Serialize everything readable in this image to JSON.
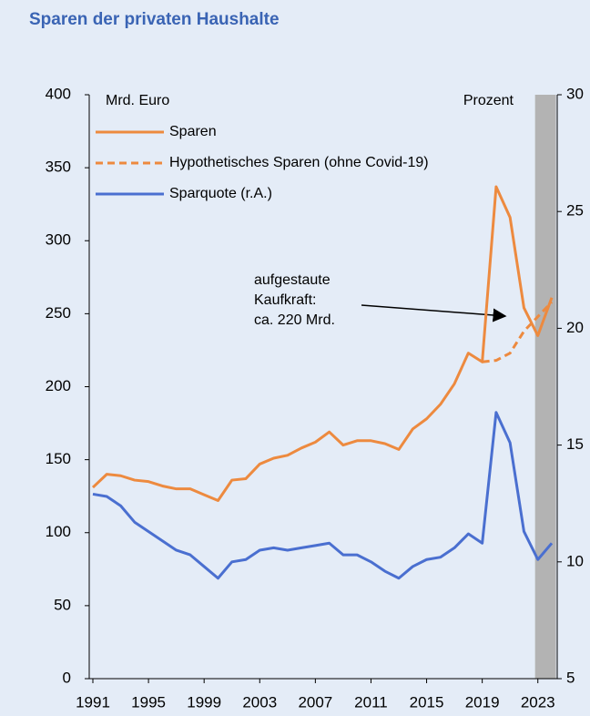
{
  "chart_data": {
    "type": "line",
    "title": "Sparen der privaten Haushalte",
    "y_label": "Mrd. Euro",
    "y2_label": "Prozent",
    "annotation": [
      "aufgestaute",
      "Kaufkraft:",
      "ca. 220 Mrd."
    ],
    "x": [
      1991,
      1992,
      1993,
      1994,
      1995,
      1996,
      1997,
      1998,
      1999,
      2000,
      2001,
      2002,
      2003,
      2004,
      2005,
      2006,
      2007,
      2008,
      2009,
      2010,
      2011,
      2012,
      2013,
      2014,
      2015,
      2016,
      2017,
      2018,
      2019,
      2020,
      2021,
      2022,
      2023,
      2024
    ],
    "series": [
      {
        "name": "Sparen",
        "color": "#ed8a3f",
        "dashed": false,
        "values": [
          131,
          140,
          139,
          136,
          135,
          132,
          130,
          130,
          126,
          122,
          136,
          137,
          147,
          151,
          153,
          158,
          162,
          169,
          160,
          163,
          163,
          161,
          157,
          171,
          178,
          188,
          202,
          223,
          217,
          337,
          316,
          254,
          235,
          261
        ]
      },
      {
        "name": "Hypothetisches Sparen (ohne Covid-19)",
        "color": "#ed8a3f",
        "dashed": true,
        "values": [
          null,
          null,
          null,
          null,
          null,
          null,
          null,
          null,
          null,
          null,
          null,
          null,
          null,
          null,
          null,
          null,
          null,
          null,
          null,
          null,
          null,
          null,
          null,
          null,
          null,
          null,
          null,
          null,
          217,
          218,
          223,
          238,
          248,
          258
        ]
      },
      {
        "name": "Sparquote (r.A.)",
        "color": "#4a6fd0",
        "dashed": false,
        "axis": "y2",
        "values": [
          12.9,
          12.8,
          12.4,
          11.7,
          11.3,
          10.9,
          10.5,
          10.3,
          9.8,
          9.3,
          10.0,
          10.1,
          10.5,
          10.6,
          10.5,
          10.6,
          10.7,
          10.8,
          10.3,
          10.3,
          10.0,
          9.6,
          9.3,
          9.8,
          10.1,
          10.2,
          10.6,
          11.2,
          10.8,
          16.4,
          15.1,
          11.3,
          10.1,
          10.8
        ]
      }
    ],
    "xlim": [
      1991,
      2024
    ],
    "xticks": [
      1991,
      1995,
      1999,
      2003,
      2007,
      2011,
      2015,
      2019,
      2023
    ],
    "ylim": [
      0,
      400
    ],
    "yticks": [
      0,
      50,
      100,
      150,
      200,
      250,
      300,
      350,
      400
    ],
    "y2lim": [
      5,
      30
    ],
    "y2ticks": [
      5,
      10,
      15,
      20,
      25,
      30
    ],
    "shaded_x": [
      2022.8,
      2024.3
    ],
    "shade_color": "#b3b3b3"
  }
}
